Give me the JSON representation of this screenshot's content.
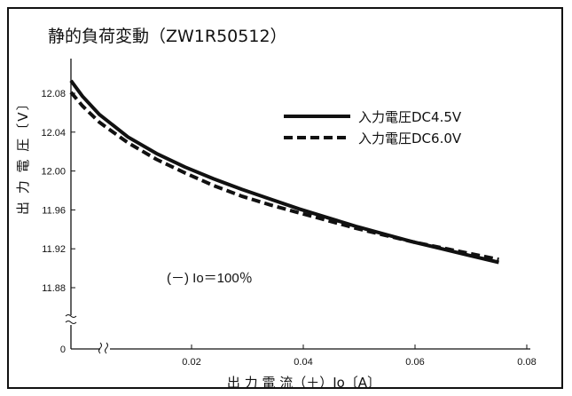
{
  "chart_data": {
    "type": "line",
    "title": "静的負荷変動（ZW1R50512）",
    "xlabel": "出 力 電 流（＋）Io〔A〕",
    "ylabel": "出 力 電 圧〔V〕",
    "xlim": [
      0,
      0.08
    ],
    "ylim": [
      11.86,
      12.1
    ],
    "x_ticks": [
      "0.02",
      "0.04",
      "0.06",
      "0.08"
    ],
    "y_ticks": [
      "12.08",
      "12.04",
      "12.00",
      "11.96",
      "11.92",
      "11.88"
    ],
    "x_origin_label": "0",
    "grid": false,
    "legend_position": "top-right",
    "annotation": "(－) Io＝100％",
    "series": [
      {
        "name": "入力電圧DC4.5V",
        "style": "solid",
        "x": [
          0.0,
          0.002,
          0.005,
          0.01,
          0.015,
          0.02,
          0.025,
          0.03,
          0.035,
          0.04,
          0.045,
          0.05,
          0.055,
          0.06,
          0.065,
          0.07,
          0.075
        ],
        "y": [
          12.093,
          12.077,
          12.058,
          12.035,
          12.018,
          12.004,
          11.992,
          11.981,
          11.971,
          11.961,
          11.952,
          11.943,
          11.935,
          11.927,
          11.92,
          11.913,
          11.906
        ]
      },
      {
        "name": "入力電圧DC6.0V",
        "style": "dashed",
        "x": [
          0.0,
          0.002,
          0.005,
          0.01,
          0.015,
          0.02,
          0.025,
          0.03,
          0.035,
          0.04,
          0.045,
          0.05,
          0.055,
          0.06,
          0.065,
          0.07,
          0.075
        ],
        "y": [
          12.081,
          12.067,
          12.05,
          12.029,
          12.012,
          11.998,
          11.985,
          11.974,
          11.965,
          11.957,
          11.949,
          11.941,
          11.934,
          11.927,
          11.921,
          11.915,
          11.909
        ]
      }
    ]
  }
}
